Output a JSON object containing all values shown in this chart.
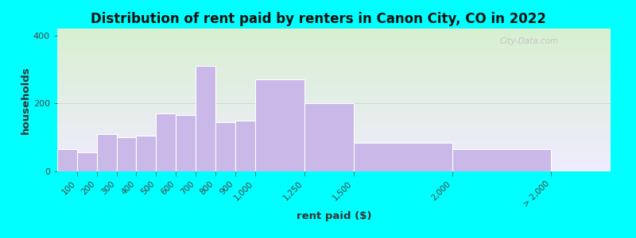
{
  "title": "Distribution of rent paid by renters in Canon City, CO in 2022",
  "xlabel": "rent paid ($)",
  "ylabel": "households",
  "bar_color": "#c9b8e8",
  "bar_edge_color": "#ffffff",
  "outer_background": "#00ffff",
  "watermark": "City-Data.com",
  "ylim": [
    0,
    420
  ],
  "yticks": [
    0,
    200,
    400
  ],
  "tick_labels": [
    "100",
    "200",
    "300",
    "400",
    "500",
    "600",
    "700",
    "800",
    "900",
    "1,000",
    "1,250",
    "1,500",
    "2,000",
    "> 2,000"
  ],
  "bar_lefts": [
    0,
    100,
    200,
    300,
    400,
    500,
    600,
    700,
    800,
    900,
    1000,
    1250,
    1500,
    2000
  ],
  "bar_widths": [
    100,
    100,
    100,
    100,
    100,
    100,
    100,
    100,
    100,
    100,
    250,
    250,
    500,
    500
  ],
  "bar_values": [
    65,
    55,
    110,
    100,
    105,
    170,
    165,
    310,
    145,
    150,
    270,
    200,
    85,
    65
  ],
  "tick_positions": [
    100,
    200,
    300,
    400,
    500,
    600,
    700,
    800,
    900,
    1000,
    1250,
    1500,
    2000,
    2500
  ],
  "bg_gradient_left": "#d8f0d0",
  "bg_gradient_right": "#f0ecff"
}
